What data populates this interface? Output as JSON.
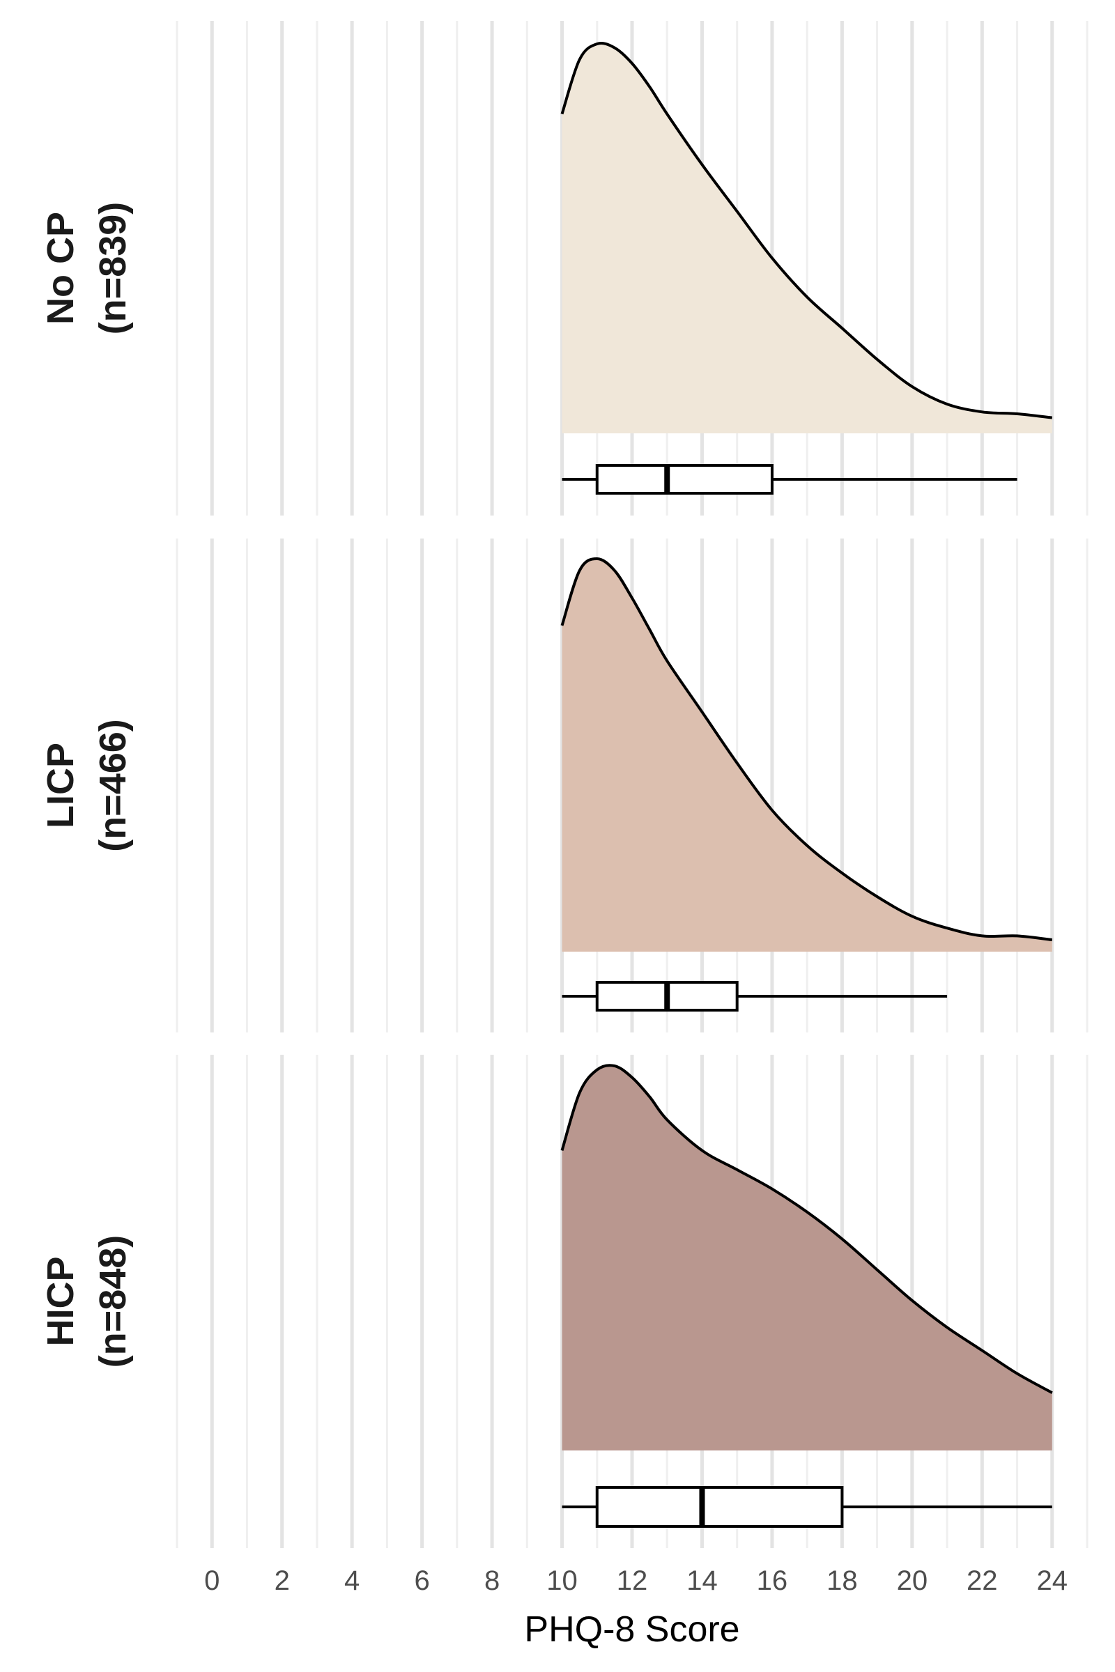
{
  "chart_data": {
    "type": "density_boxplot",
    "xlabel": "PHQ-8 Score",
    "x_ticks": [
      0,
      2,
      4,
      6,
      8,
      10,
      12,
      14,
      16,
      18,
      20,
      22,
      24
    ],
    "xlim": [
      -1,
      25
    ],
    "grid": true,
    "panels": [
      {
        "label_line1": "No CP",
        "label_line2": "(n=839)",
        "color": "#f0e7d9",
        "density": {
          "x": [
            10,
            10.5,
            11,
            11.5,
            12,
            12.5,
            13,
            14,
            15,
            16,
            17,
            18,
            19,
            20,
            21,
            22,
            23,
            24
          ],
          "y": [
            0.82,
            0.96,
            1.0,
            0.99,
            0.95,
            0.89,
            0.82,
            0.69,
            0.57,
            0.45,
            0.35,
            0.27,
            0.19,
            0.12,
            0.075,
            0.055,
            0.05,
            0.04
          ]
        },
        "box": {
          "whisker_low": 10,
          "q1": 11,
          "median": 13,
          "q3": 16,
          "whisker_high": 23
        }
      },
      {
        "label_line1": "LICP",
        "label_line2": "(n=466)",
        "color": "#dcbfaf",
        "density": {
          "x": [
            10,
            10.5,
            11,
            11.5,
            12,
            12.5,
            13,
            14,
            15,
            16,
            17,
            18,
            19,
            20,
            21,
            22,
            23,
            24
          ],
          "y": [
            0.83,
            0.97,
            1.0,
            0.97,
            0.9,
            0.82,
            0.74,
            0.61,
            0.48,
            0.36,
            0.27,
            0.2,
            0.14,
            0.09,
            0.06,
            0.04,
            0.04,
            0.03
          ]
        },
        "box": {
          "whisker_low": 10,
          "q1": 11,
          "median": 13,
          "q3": 15,
          "whisker_high": 21
        }
      },
      {
        "label_line1": "HICP",
        "label_line2": "(n=848)",
        "color": "#b9978f",
        "density": {
          "x": [
            10,
            10.5,
            11,
            11.5,
            12,
            12.5,
            13,
            14,
            15,
            16,
            17,
            18,
            19,
            20,
            21,
            22,
            23,
            24
          ],
          "y": [
            0.78,
            0.93,
            0.99,
            1.0,
            0.97,
            0.92,
            0.86,
            0.78,
            0.73,
            0.68,
            0.62,
            0.55,
            0.47,
            0.39,
            0.32,
            0.26,
            0.2,
            0.15
          ]
        },
        "box": {
          "whisker_low": 10,
          "q1": 11,
          "median": 14,
          "q3": 18,
          "whisker_high": 24
        }
      }
    ]
  }
}
